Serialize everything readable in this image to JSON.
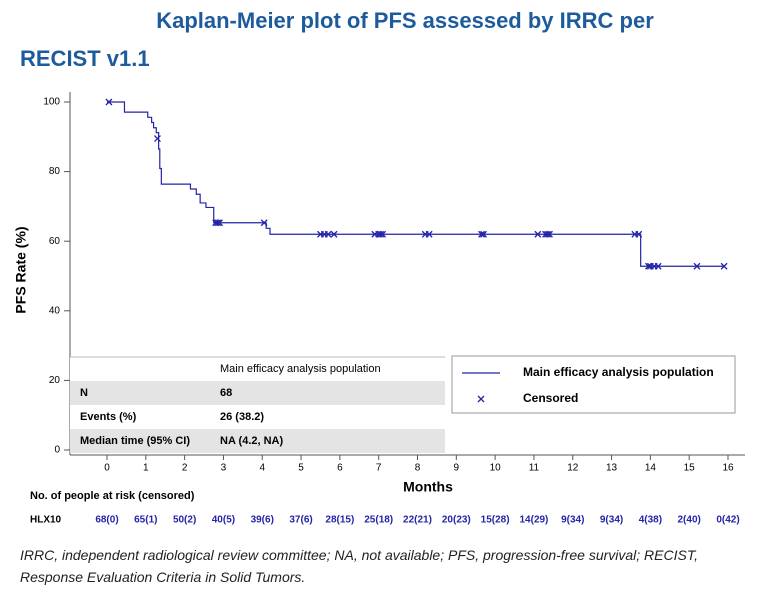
{
  "chart_data": {
    "type": "step",
    "title": [
      "Kaplan-Meier plot of PFS assessed by IRRC per",
      "RECIST v1.1"
    ],
    "x_label": "Months",
    "y_label": "PFS Rate (%)",
    "xlim": [
      0,
      16
    ],
    "xticks": [
      0,
      1,
      2,
      3,
      4,
      5,
      6,
      7,
      8,
      9,
      10,
      11,
      12,
      13,
      14,
      15,
      16
    ],
    "ylim": [
      0,
      100
    ],
    "yticks": [
      0,
      20,
      40,
      60,
      80,
      100
    ],
    "series": [
      {
        "name": "Main efficacy analysis population",
        "color": "#2424a8",
        "x": [
          0,
          0.45,
          1.05,
          1.15,
          1.2,
          1.27,
          1.33,
          1.36,
          1.4,
          2.15,
          2.3,
          2.4,
          2.55,
          2.75,
          4.1,
          4.2,
          13.75,
          15.9
        ],
        "y": [
          100,
          97.1,
          95.6,
          94.1,
          92.6,
          91.2,
          86.5,
          80.9,
          76.4,
          75,
          73.5,
          71,
          69.7,
          65.3,
          63.7,
          62,
          52.8,
          52.8
        ]
      },
      {
        "name": "Censored",
        "color": "#2424a8",
        "marker": "x",
        "x": [
          0.05,
          1.3,
          2.8,
          2.85,
          2.9,
          4.05,
          5.5,
          5.6,
          5.7,
          5.85,
          6.9,
          7.0,
          7.05,
          7.1,
          8.2,
          8.3,
          9.65,
          9.7,
          11.1,
          11.3,
          11.35,
          11.4,
          13.6,
          13.7,
          13.95,
          14.0,
          14.1,
          14.2,
          15.2,
          15.9
        ],
        "y": [
          100,
          89.5,
          65.3,
          65.3,
          65.3,
          65.3,
          62,
          62,
          62,
          62,
          62,
          62,
          62,
          62,
          62,
          62,
          62,
          62,
          62,
          62,
          62,
          62,
          62,
          62,
          52.8,
          52.8,
          52.8,
          52.8,
          52.8,
          52.8
        ]
      }
    ]
  },
  "efficacy_table": {
    "header": "Main efficacy analysis population",
    "rows": [
      [
        "N",
        "68"
      ],
      [
        "Events (%)",
        "26 (38.2)"
      ],
      [
        "Median time (95% CI)",
        "NA (4.2, NA)"
      ]
    ]
  },
  "risk_table": {
    "title": "No. of people at risk (censored)",
    "group": "HLX10",
    "values": [
      "68(0)",
      "65(1)",
      "50(2)",
      "40(5)",
      "39(6)",
      "37(6)",
      "28(15)",
      "25(18)",
      "22(21)",
      "20(23)",
      "15(28)",
      "14(29)",
      "9(34)",
      "9(34)",
      "4(38)",
      "2(40)",
      "0(42)"
    ]
  },
  "footnote": "IRRC, independent radiological review committee; NA, not available; PFS, progression-free survival; RECIST, Response Evaluation Criteria in Solid Tumors."
}
